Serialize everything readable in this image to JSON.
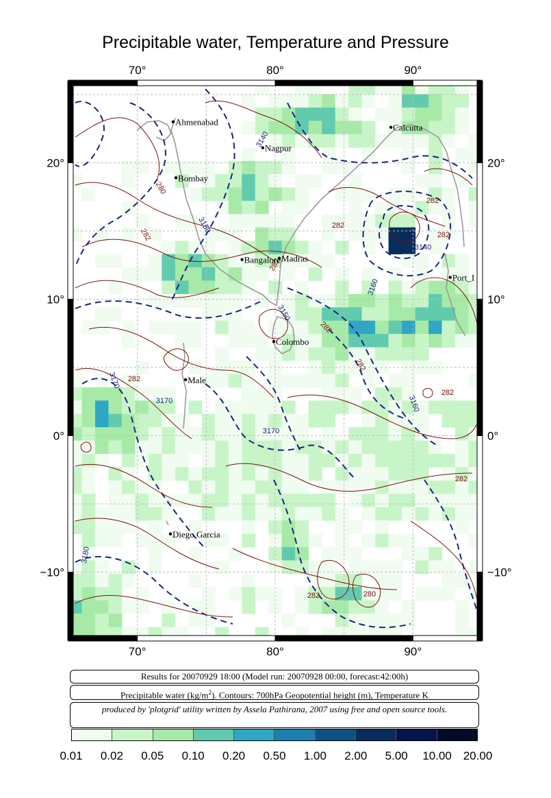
{
  "title": "Precipitable water, Temperature and Pressure",
  "map": {
    "lon_ticks": [
      "70°",
      "80°",
      "90°"
    ],
    "lat_ticks": [
      "20°",
      "10°",
      "0°",
      "−10°"
    ],
    "cities": [
      {
        "name": "Ahmenabad",
        "lon": 72.6,
        "lat": 23.0
      },
      {
        "name": "Calcutta",
        "lon": 88.4,
        "lat": 22.6
      },
      {
        "name": "Nagpur",
        "lon": 79.1,
        "lat": 21.1
      },
      {
        "name": "Bombay",
        "lon": 72.8,
        "lat": 18.9
      },
      {
        "name": "Bangalore",
        "lon": 77.6,
        "lat": 12.9
      },
      {
        "name": "Madras",
        "lon": 80.3,
        "lat": 13.0
      },
      {
        "name": "Port_I",
        "lon": 92.7,
        "lat": 11.6
      },
      {
        "name": "Colombo",
        "lon": 79.9,
        "lat": 6.9
      },
      {
        "name": "Male",
        "lon": 73.5,
        "lat": 4.1
      },
      {
        "name": "Diego Garcia",
        "lon": 72.4,
        "lat": -7.2
      }
    ],
    "contour_labels": [
      "3140",
      "3150",
      "3150",
      "3160",
      "3160",
      "3170",
      "3170",
      "3170",
      "3180",
      "3140",
      "280",
      "280",
      "282",
      "282",
      "282",
      "282",
      "282",
      "282",
      "282",
      "282",
      "282",
      "282",
      "282"
    ]
  },
  "info": {
    "results_line": "Results for 20070929 18:00 (Model run: 20070928 00:00, forecast:42:00h)",
    "variable_prefix": "Precipitable water (kg/m",
    "variable_sup": "2",
    "variable_suffix": ").  Contours: 700hPa Geopotential height (m), Temperature K",
    "credit": "produced by 'plotgrid' utility written by Assela Pathirana, 2007 using free and open source tools."
  },
  "legend": {
    "labels": [
      "0.01",
      "0.02",
      "0.05",
      "0.10",
      "0.20",
      "0.50",
      "1.00",
      "2.00",
      "5.00",
      "10.00",
      "20.00"
    ],
    "colors": [
      "#f0fcf0",
      "#c8f5c8",
      "#a7eaa7",
      "#62cbae",
      "#2fa6c6",
      "#1a80ae",
      "#0f5082",
      "#082c5c",
      "#05144a",
      "#040a2a"
    ]
  }
}
